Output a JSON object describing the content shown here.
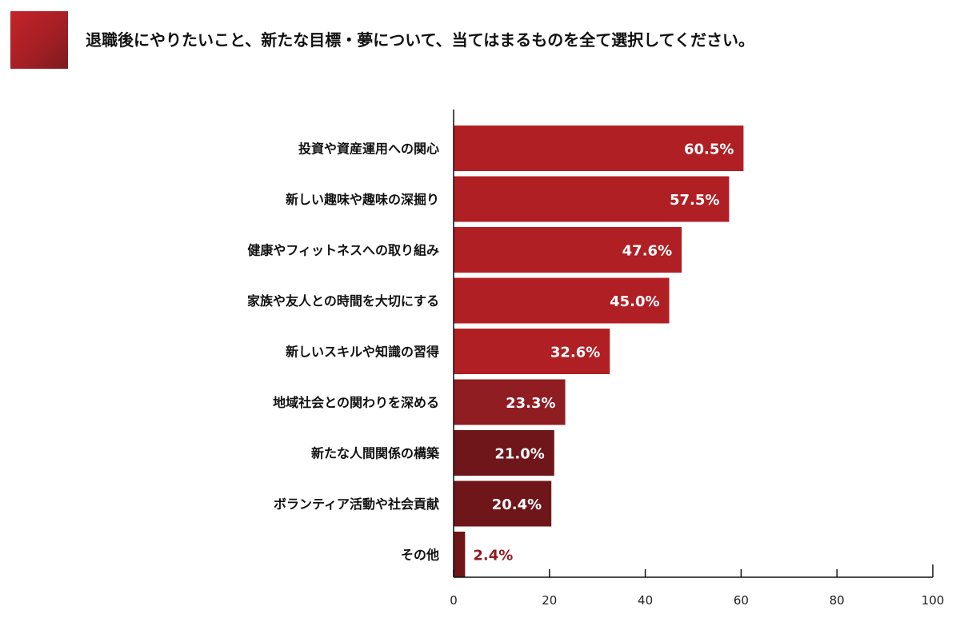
{
  "title": "退職後にやりたいこと、新たな目標・夢について、当てはまるものを全て選択してください。",
  "chart_data": {
    "type": "bar",
    "orientation": "horizontal",
    "categories": [
      "投資や資産運用への関心",
      "新しい趣味や趣味の深掘り",
      "健康やフィットネスへの取り組み",
      "家族や友人との時間を大切にする",
      "新しいスキルや知識の習得",
      "地域社会との関わりを深める",
      "新たな人間関係の構築",
      "ボランティア活動や社会貢献",
      "その他"
    ],
    "values": [
      60.5,
      57.5,
      47.6,
      45.0,
      32.6,
      23.3,
      21.0,
      20.4,
      2.4
    ],
    "value_labels": [
      "60.5%",
      "57.5%",
      "47.6%",
      "45.0%",
      "32.6%",
      "23.3%",
      "21.0%",
      "20.4%",
      "2.4%"
    ],
    "bar_colors": [
      "#b01f24",
      "#b01f24",
      "#b01f24",
      "#b01f24",
      "#b01f24",
      "#8f1d21",
      "#6e161a",
      "#6e161a",
      "#6e161a"
    ],
    "xlim": [
      0,
      100
    ],
    "xticks": [
      0,
      20,
      40,
      60,
      80,
      100
    ],
    "xtick_labels": [
      "0",
      "20",
      "40",
      "60",
      "80",
      "100"
    ],
    "grid": false,
    "legend": "none"
  },
  "colors": {
    "badge": "#b01f24",
    "label_outside": "#8f1d21",
    "label_inside": "#ffffff",
    "axis": "#111111"
  }
}
